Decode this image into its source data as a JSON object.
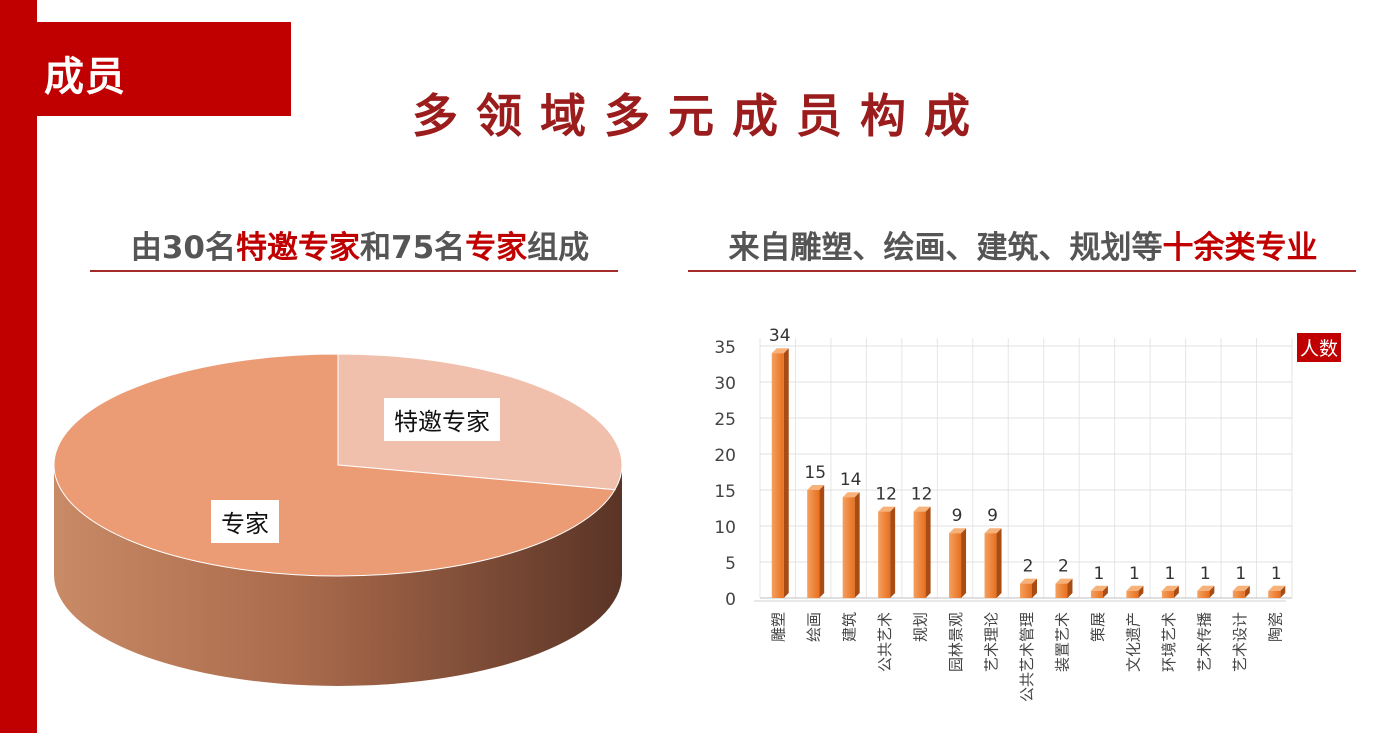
{
  "section_tag": "成员",
  "main_title": "多领域多元成员构成",
  "left_heading": {
    "part1": "由30名",
    "hl1": "特邀专家",
    "part2": "和75名",
    "hl2": "专家",
    "part3": "组成"
  },
  "right_heading": {
    "part1": "来自雕塑、绘画、建筑、规划等",
    "hl1": "十余类专业"
  },
  "colors": {
    "accent": "#c00000",
    "title": "#9b1c1c",
    "pie_main": "#eb9c74",
    "pie_light": "#f0c0ad",
    "bar": "#ed7d31"
  },
  "chart_data": [
    {
      "type": "pie",
      "labels": [
        "特邀专家",
        "专家"
      ],
      "values": [
        30,
        75
      ]
    },
    {
      "type": "bar",
      "ylabel": "人数",
      "categories": [
        "雕塑",
        "绘画",
        "建筑",
        "公共艺术",
        "规划",
        "园林景观",
        "艺术理论",
        "公共艺术管理",
        "装置艺术",
        "策展",
        "文化遗产",
        "环境艺术",
        "艺术传播",
        "艺术设计",
        "陶瓷"
      ],
      "values": [
        34,
        15,
        14,
        12,
        12,
        9,
        9,
        2,
        2,
        1,
        1,
        1,
        1,
        1,
        1
      ],
      "ylim": [
        0,
        35
      ],
      "yticks": [
        0,
        5,
        10,
        15,
        20,
        25,
        30,
        35
      ],
      "grid": true
    }
  ]
}
